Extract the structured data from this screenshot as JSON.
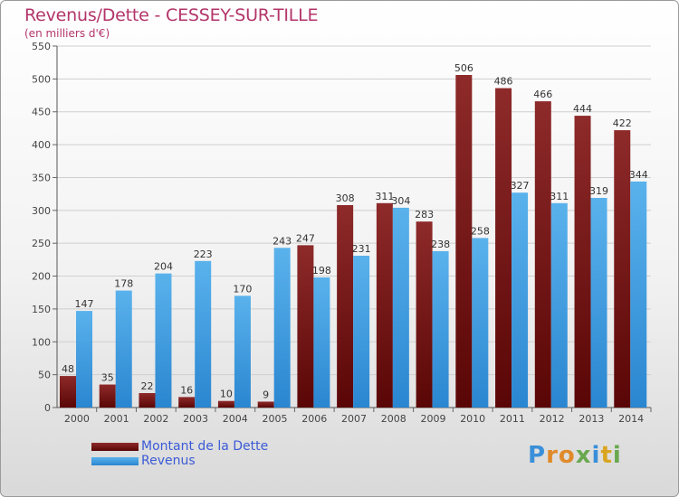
{
  "header": {
    "title": "Revenus/Dette - CESSEY-SUR-TILLE",
    "subtitle": "(en milliers d'€)"
  },
  "colors": {
    "dette": "#7a1414",
    "revenus": "#3d9be0",
    "title": "#b3356a",
    "legend_text": "#3b5bd6"
  },
  "chart_data": {
    "type": "bar",
    "title": "Revenus/Dette - CESSEY-SUR-TILLE",
    "subtitle": "(en milliers d'€)",
    "xlabel": "",
    "ylabel": "",
    "ylim": [
      0,
      550
    ],
    "yticks": [
      0,
      50,
      100,
      150,
      200,
      250,
      300,
      350,
      400,
      450,
      500,
      550
    ],
    "grid": true,
    "legend_position": "bottom-left",
    "categories": [
      "2000",
      "2001",
      "2002",
      "2003",
      "2004",
      "2005",
      "2006",
      "2007",
      "2008",
      "2009",
      "2010",
      "2011",
      "2012",
      "2013",
      "2014"
    ],
    "series": [
      {
        "name": "Montant de la Dette",
        "color": "#7a1414",
        "values": [
          48,
          35,
          22,
          16,
          10,
          9,
          247,
          308,
          311,
          283,
          506,
          486,
          466,
          444,
          422
        ]
      },
      {
        "name": "Revenus",
        "color": "#3d9be0",
        "values": [
          147,
          178,
          204,
          223,
          170,
          243,
          198,
          231,
          304,
          238,
          258,
          327,
          311,
          319,
          344
        ]
      }
    ]
  },
  "logo": {
    "letters": [
      "P",
      "r",
      "o",
      "x",
      "i",
      "t",
      "i"
    ],
    "letter_colors": [
      "#3a8fd8",
      "#e08a2a",
      "#e08a2a",
      "#6aa84f",
      "#3a8fd8",
      "#d9a520",
      "#6aa84f"
    ]
  }
}
